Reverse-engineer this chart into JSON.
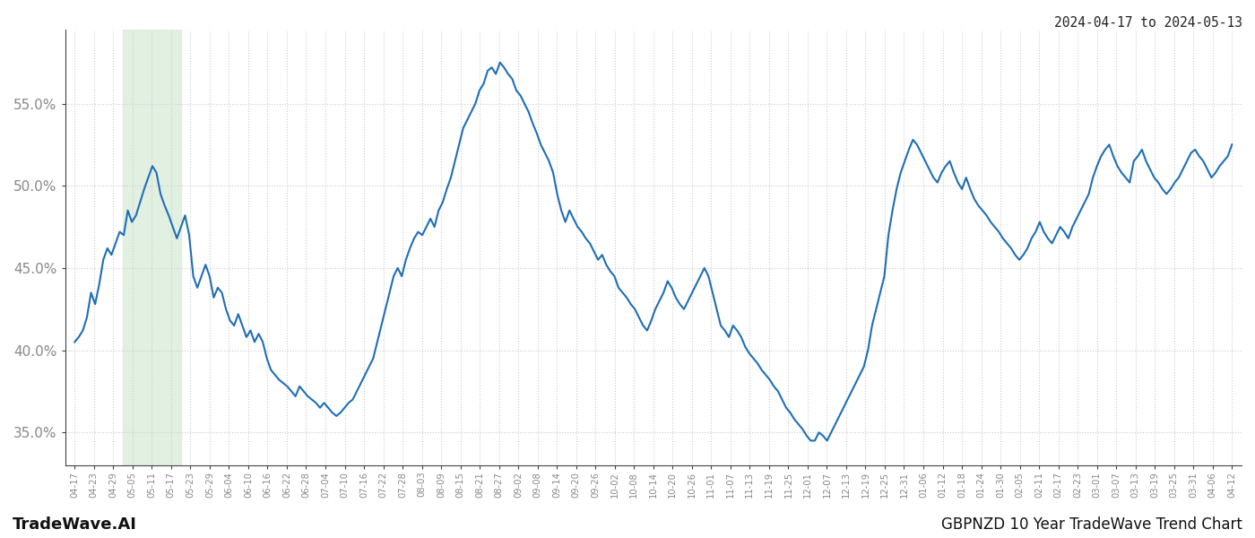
{
  "title_top_right": "2024-04-17 to 2024-05-13",
  "footer_left": "TradeWave.AI",
  "footer_right": "GBPNZD 10 Year TradeWave Trend Chart",
  "line_color": "#1f6eb5",
  "line_width": 1.5,
  "background_color": "#ffffff",
  "grid_color": "#cccccc",
  "grid_style": ":",
  "shade_color": "#d6ead7",
  "shade_alpha": 0.7,
  "ylim": [
    33.0,
    59.5
  ],
  "yticks": [
    35.0,
    40.0,
    45.0,
    50.0,
    55.0
  ],
  "xlabel_fontsize": 7.2,
  "ylabel_fontsize": 11,
  "tick_color": "#888888",
  "x_labels": [
    "04-17",
    "04-23",
    "04-29",
    "05-05",
    "05-11",
    "05-17",
    "05-23",
    "05-29",
    "06-04",
    "06-10",
    "06-16",
    "06-22",
    "06-28",
    "07-04",
    "07-10",
    "07-16",
    "07-22",
    "07-28",
    "08-03",
    "08-09",
    "08-15",
    "08-21",
    "08-27",
    "09-02",
    "09-08",
    "09-14",
    "09-20",
    "09-26",
    "10-02",
    "10-08",
    "10-14",
    "10-20",
    "10-26",
    "11-01",
    "11-07",
    "11-13",
    "11-19",
    "11-25",
    "12-01",
    "12-07",
    "12-13",
    "12-19",
    "12-25",
    "12-31",
    "01-06",
    "01-12",
    "01-18",
    "01-24",
    "01-30",
    "02-05",
    "02-11",
    "02-17",
    "02-23",
    "03-01",
    "03-07",
    "03-13",
    "03-19",
    "03-25",
    "03-31",
    "04-06",
    "04-12"
  ],
  "shade_start_label": "05-05",
  "shade_end_label": "05-17",
  "y_values": [
    40.5,
    40.8,
    41.2,
    42.0,
    43.5,
    42.8,
    44.0,
    45.5,
    46.2,
    45.8,
    46.5,
    47.2,
    47.0,
    48.5,
    47.8,
    48.2,
    49.0,
    49.8,
    50.5,
    51.2,
    50.8,
    49.5,
    48.8,
    48.2,
    47.5,
    46.8,
    47.5,
    48.2,
    47.0,
    44.5,
    43.8,
    44.5,
    45.2,
    44.5,
    43.2,
    43.8,
    43.5,
    42.5,
    41.8,
    41.5,
    42.2,
    41.5,
    40.8,
    41.2,
    40.5,
    41.0,
    40.5,
    39.5,
    38.8,
    38.5,
    38.2,
    38.0,
    37.8,
    37.5,
    37.2,
    37.8,
    37.5,
    37.2,
    37.0,
    36.8,
    36.5,
    36.8,
    36.5,
    36.2,
    36.0,
    36.2,
    36.5,
    36.8,
    37.0,
    37.5,
    38.0,
    38.5,
    39.0,
    39.5,
    40.5,
    41.5,
    42.5,
    43.5,
    44.5,
    45.0,
    44.5,
    45.5,
    46.2,
    46.8,
    47.2,
    47.0,
    47.5,
    48.0,
    47.5,
    48.5,
    49.0,
    49.8,
    50.5,
    51.5,
    52.5,
    53.5,
    54.0,
    54.5,
    55.0,
    55.8,
    56.2,
    57.0,
    57.2,
    56.8,
    57.5,
    57.2,
    56.8,
    56.5,
    55.8,
    55.5,
    55.0,
    54.5,
    53.8,
    53.2,
    52.5,
    52.0,
    51.5,
    50.8,
    49.5,
    48.5,
    47.8,
    48.5,
    48.0,
    47.5,
    47.2,
    46.8,
    46.5,
    46.0,
    45.5,
    45.8,
    45.2,
    44.8,
    44.5,
    43.8,
    43.5,
    43.2,
    42.8,
    42.5,
    42.0,
    41.5,
    41.2,
    41.8,
    42.5,
    43.0,
    43.5,
    44.2,
    43.8,
    43.2,
    42.8,
    42.5,
    43.0,
    43.5,
    44.0,
    44.5,
    45.0,
    44.5,
    43.5,
    42.5,
    41.5,
    41.2,
    40.8,
    41.5,
    41.2,
    40.8,
    40.2,
    39.8,
    39.5,
    39.2,
    38.8,
    38.5,
    38.2,
    37.8,
    37.5,
    37.0,
    36.5,
    36.2,
    35.8,
    35.5,
    35.2,
    34.8,
    34.5,
    34.5,
    35.0,
    34.8,
    34.5,
    35.0,
    35.5,
    36.0,
    36.5,
    37.0,
    37.5,
    38.0,
    38.5,
    39.0,
    40.0,
    41.5,
    42.5,
    43.5,
    44.5,
    47.0,
    48.5,
    49.8,
    50.8,
    51.5,
    52.2,
    52.8,
    52.5,
    52.0,
    51.5,
    51.0,
    50.5,
    50.2,
    50.8,
    51.2,
    51.5,
    50.8,
    50.2,
    49.8,
    50.5,
    49.8,
    49.2,
    48.8,
    48.5,
    48.2,
    47.8,
    47.5,
    47.2,
    46.8,
    46.5,
    46.2,
    45.8,
    45.5,
    45.8,
    46.2,
    46.8,
    47.2,
    47.8,
    47.2,
    46.8,
    46.5,
    47.0,
    47.5,
    47.2,
    46.8,
    47.5,
    48.0,
    48.5,
    49.0,
    49.5,
    50.5,
    51.2,
    51.8,
    52.2,
    52.5,
    51.8,
    51.2,
    50.8,
    50.5,
    50.2,
    51.5,
    51.8,
    52.2,
    51.5,
    51.0,
    50.5,
    50.2,
    49.8,
    49.5,
    49.8,
    50.2,
    50.5,
    51.0,
    51.5,
    52.0,
    52.2,
    51.8,
    51.5,
    51.0,
    50.5,
    50.8,
    51.2,
    51.5,
    51.8,
    52.5
  ]
}
